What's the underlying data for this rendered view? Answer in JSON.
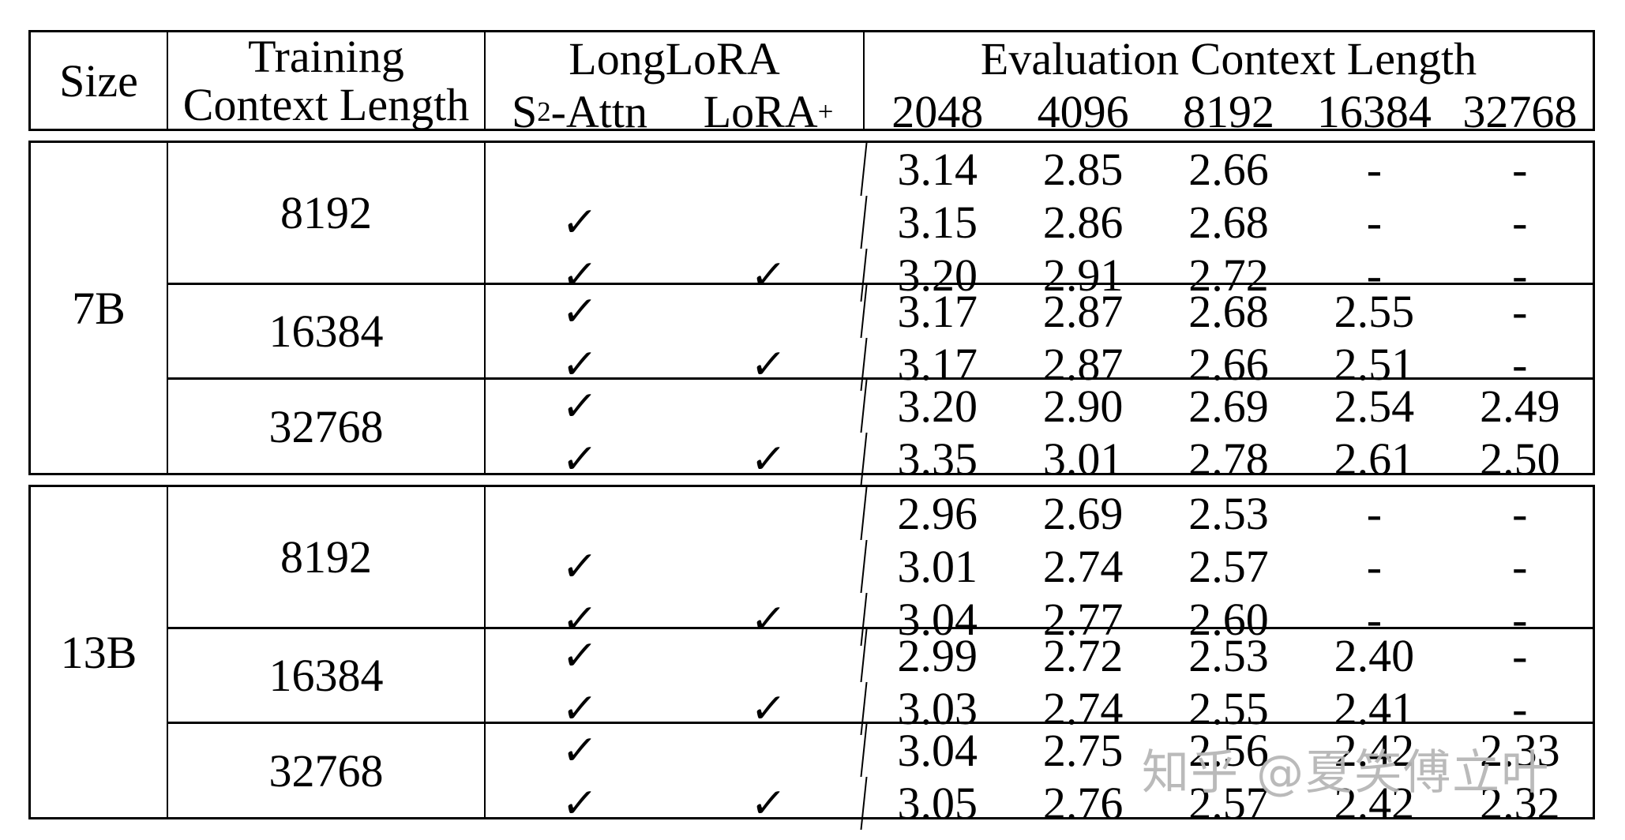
{
  "watermark": {
    "text": "知乎 @夏笑傅立叶",
    "color": "#b6b6b6"
  },
  "table": {
    "check_glyph": "✓",
    "header": {
      "size": "Size",
      "training_line1": "Training",
      "training_line2": "Context Length",
      "longlora": "LongLoRA",
      "s2attn": {
        "pre": "S",
        "sup": "2",
        "post": "-Attn"
      },
      "lora_plus": {
        "pre": "LoRA",
        "sup": "+"
      },
      "evaluation": "Evaluation Context Length",
      "eval_cols": [
        "2048",
        "4096",
        "8192",
        "16384",
        "32768"
      ]
    },
    "sections": [
      {
        "size": "7B",
        "groups": [
          {
            "training": "8192",
            "rows": [
              {
                "s2attn": false,
                "lora_plus": false,
                "values": [
                  "3.14",
                  "2.85",
                  "2.66",
                  "-",
                  "-"
                ]
              },
              {
                "s2attn": true,
                "lora_plus": false,
                "values": [
                  "3.15",
                  "2.86",
                  "2.68",
                  "-",
                  "-"
                ]
              },
              {
                "s2attn": true,
                "lora_plus": true,
                "values": [
                  "3.20",
                  "2.91",
                  "2.72",
                  "-",
                  "-"
                ]
              }
            ]
          },
          {
            "training": "16384",
            "rows": [
              {
                "s2attn": true,
                "lora_plus": false,
                "values": [
                  "3.17",
                  "2.87",
                  "2.68",
                  "2.55",
                  "-"
                ]
              },
              {
                "s2attn": true,
                "lora_plus": true,
                "values": [
                  "3.17",
                  "2.87",
                  "2.66",
                  "2.51",
                  "-"
                ]
              }
            ]
          },
          {
            "training": "32768",
            "rows": [
              {
                "s2attn": true,
                "lora_plus": false,
                "values": [
                  "3.20",
                  "2.90",
                  "2.69",
                  "2.54",
                  "2.49"
                ]
              },
              {
                "s2attn": true,
                "lora_plus": true,
                "values": [
                  "3.35",
                  "3.01",
                  "2.78",
                  "2.61",
                  "2.50"
                ]
              }
            ]
          }
        ]
      },
      {
        "size": "13B",
        "groups": [
          {
            "training": "8192",
            "rows": [
              {
                "s2attn": false,
                "lora_plus": false,
                "values": [
                  "2.96",
                  "2.69",
                  "2.53",
                  "-",
                  "-"
                ]
              },
              {
                "s2attn": true,
                "lora_plus": false,
                "values": [
                  "3.01",
                  "2.74",
                  "2.57",
                  "-",
                  "-"
                ]
              },
              {
                "s2attn": true,
                "lora_plus": true,
                "values": [
                  "3.04",
                  "2.77",
                  "2.60",
                  "-",
                  "-"
                ]
              }
            ]
          },
          {
            "training": "16384",
            "rows": [
              {
                "s2attn": true,
                "lora_plus": false,
                "values": [
                  "2.99",
                  "2.72",
                  "2.53",
                  "2.40",
                  "-"
                ]
              },
              {
                "s2attn": true,
                "lora_plus": true,
                "values": [
                  "3.03",
                  "2.74",
                  "2.55",
                  "2.41",
                  "-"
                ]
              }
            ]
          },
          {
            "training": "32768",
            "rows": [
              {
                "s2attn": true,
                "lora_plus": false,
                "values": [
                  "3.04",
                  "2.75",
                  "2.56",
                  "2.42",
                  "2.33"
                ]
              },
              {
                "s2attn": true,
                "lora_plus": true,
                "values": [
                  "3.05",
                  "2.76",
                  "2.57",
                  "2.42",
                  "2.32"
                ]
              }
            ]
          }
        ]
      }
    ]
  }
}
